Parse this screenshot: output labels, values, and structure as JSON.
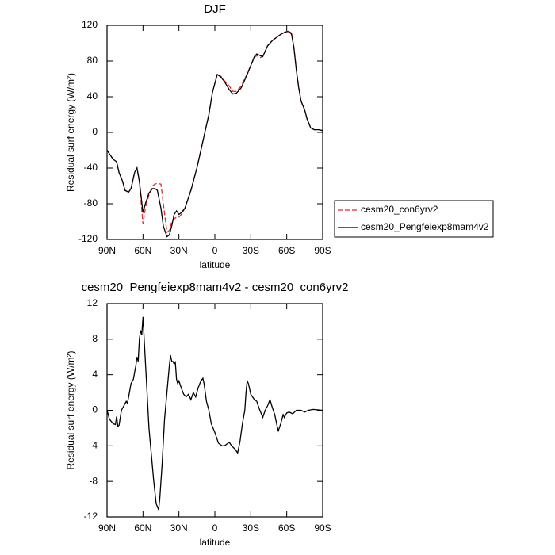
{
  "chart_data": [
    {
      "type": "line",
      "title": "DJF",
      "xlabel": "latitude",
      "ylabel": "Residual surf energy (W/m²)",
      "x": [
        90,
        85,
        82,
        80,
        77,
        75,
        72,
        70,
        67,
        65,
        63,
        60,
        58,
        55,
        52,
        50,
        48,
        45,
        43,
        40,
        38,
        36,
        34,
        32,
        30,
        28,
        25,
        20,
        15,
        10,
        5,
        2,
        0,
        -2,
        -5,
        -8,
        -12,
        -15,
        -18,
        -22,
        -27,
        -30,
        -33,
        -35,
        -38,
        -40,
        -44,
        -48,
        -52,
        -55,
        -58,
        -60,
        -62,
        -64,
        -66,
        -68,
        -70,
        -72,
        -75,
        -77,
        -80,
        -83,
        -87,
        -90
      ],
      "series": [
        {
          "name": "cesm20_con6yrv2",
          "color": "#e8262b",
          "line_style": "dashed",
          "values": [
            -20,
            -30,
            -33,
            -45,
            -55,
            -65,
            -67,
            -63,
            -45,
            -40,
            -55,
            -103,
            -85,
            -70,
            -60,
            -58,
            -57,
            -58,
            -80,
            -112,
            -110,
            -100,
            -97,
            -95,
            -95,
            -92,
            -85,
            -65,
            -40,
            -10,
            20,
            45,
            55,
            65,
            63,
            58,
            52,
            46,
            46,
            52,
            66,
            75,
            84,
            86,
            84,
            85,
            97,
            103,
            107,
            110,
            112,
            113,
            114,
            111,
            95,
            70,
            50,
            35,
            25,
            15,
            5,
            3,
            3,
            2
          ]
        },
        {
          "name": "cesm20_Pengfeiexp8mam4v2",
          "color": "#000000",
          "line_style": "solid",
          "values": [
            -20,
            -30,
            -33,
            -45,
            -55,
            -65,
            -67,
            -63,
            -45,
            -40,
            -55,
            -90,
            -80,
            -68,
            -63,
            -63,
            -65,
            -85,
            -105,
            -117,
            -115,
            -105,
            -92,
            -88,
            -92,
            -90,
            -85,
            -65,
            -40,
            -10,
            20,
            45,
            55,
            65,
            62,
            57,
            48,
            43,
            44,
            50,
            65,
            75,
            85,
            88,
            86,
            85,
            97,
            103,
            107,
            110,
            112,
            113,
            113,
            110,
            95,
            70,
            50,
            35,
            25,
            15,
            5,
            3,
            3,
            2
          ]
        }
      ],
      "xlim": [
        90,
        -90
      ],
      "xticks": [
        {
          "value": 90,
          "label": "90N"
        },
        {
          "value": 60,
          "label": "60N"
        },
        {
          "value": 30,
          "label": "30N"
        },
        0,
        {
          "value": -30,
          "label": "30S"
        },
        {
          "value": -60,
          "label": "60S"
        },
        {
          "value": -90,
          "label": "90S"
        }
      ],
      "ylim": [
        -120,
        120
      ],
      "yticks": [
        -120,
        -80,
        -40,
        0,
        40,
        80,
        120
      ],
      "legend": "right"
    },
    {
      "type": "line",
      "title": "cesm20_Pengfeiexp8mam4v2 - cesm20_con6yrv2",
      "xlabel": "latitude",
      "ylabel": "Residual surf energy (W/m²)",
      "x": [
        90,
        88,
        85,
        83,
        82,
        81,
        80,
        78,
        76,
        74,
        73,
        72,
        70,
        68,
        66,
        65,
        64,
        63,
        62,
        61,
        60,
        59,
        57,
        55,
        53,
        51,
        49,
        47,
        46,
        44,
        42,
        40,
        38,
        37,
        36,
        35,
        34,
        33,
        32,
        31,
        30,
        28,
        26,
        24,
        22,
        20,
        18,
        16,
        14,
        12,
        10,
        9,
        7,
        5,
        3,
        0,
        -3,
        -6,
        -8,
        -10,
        -12,
        -14,
        -17,
        -19,
        -21,
        -23,
        -25,
        -26,
        -27,
        -28,
        -30,
        -33,
        -35,
        -37,
        -40,
        -42,
        -44,
        -46,
        -48,
        -50,
        -52,
        -53,
        -55,
        -57,
        -58,
        -60,
        -62,
        -65,
        -68,
        -72,
        -75,
        -78,
        -82,
        -90
      ],
      "series": [
        {
          "color": "#000000",
          "line_style": "solid",
          "values": [
            0,
            -1,
            -1.5,
            -1.6,
            -0.7,
            -1.8,
            -1.7,
            0,
            0.5,
            1,
            0.8,
            1.5,
            3,
            3.5,
            5,
            6,
            5.5,
            8,
            9,
            8.5,
            10.5,
            8,
            3,
            -2,
            -5,
            -8,
            -10.5,
            -11.2,
            -10,
            -6,
            -1,
            2,
            5,
            6.2,
            5.5,
            5.5,
            5.2,
            5.4,
            3.5,
            3,
            3.3,
            2.5,
            1.8,
            1.5,
            1.8,
            1.2,
            2,
            1.5,
            2.5,
            3.2,
            3.6,
            3,
            1,
            0,
            -1.5,
            -2.5,
            -3.7,
            -4,
            -4,
            -3.8,
            -3.6,
            -4,
            -4.4,
            -4.8,
            -3.5,
            -1.5,
            0,
            2,
            3.3,
            3,
            1.8,
            1.2,
            1,
            0.2,
            -0.8,
            0,
            0.5,
            1.2,
            0.3,
            -0.5,
            -1.8,
            -2.3,
            -1.5,
            -0.5,
            -0.8,
            -0.3,
            -0.2,
            -0.4,
            0,
            0,
            -0.2,
            0,
            0.1,
            0
          ]
        }
      ],
      "xlim": [
        90,
        -90
      ],
      "xticks": [
        {
          "value": 90,
          "label": "90N"
        },
        {
          "value": 60,
          "label": "60N"
        },
        {
          "value": 30,
          "label": "30N"
        },
        0,
        {
          "value": -30,
          "label": "30S"
        },
        {
          "value": -60,
          "label": "60S"
        },
        {
          "value": -90,
          "label": "90S"
        }
      ],
      "ylim": [
        -12,
        12
      ],
      "yticks": [
        -12,
        -8,
        -4,
        0,
        4,
        8,
        12
      ]
    }
  ]
}
